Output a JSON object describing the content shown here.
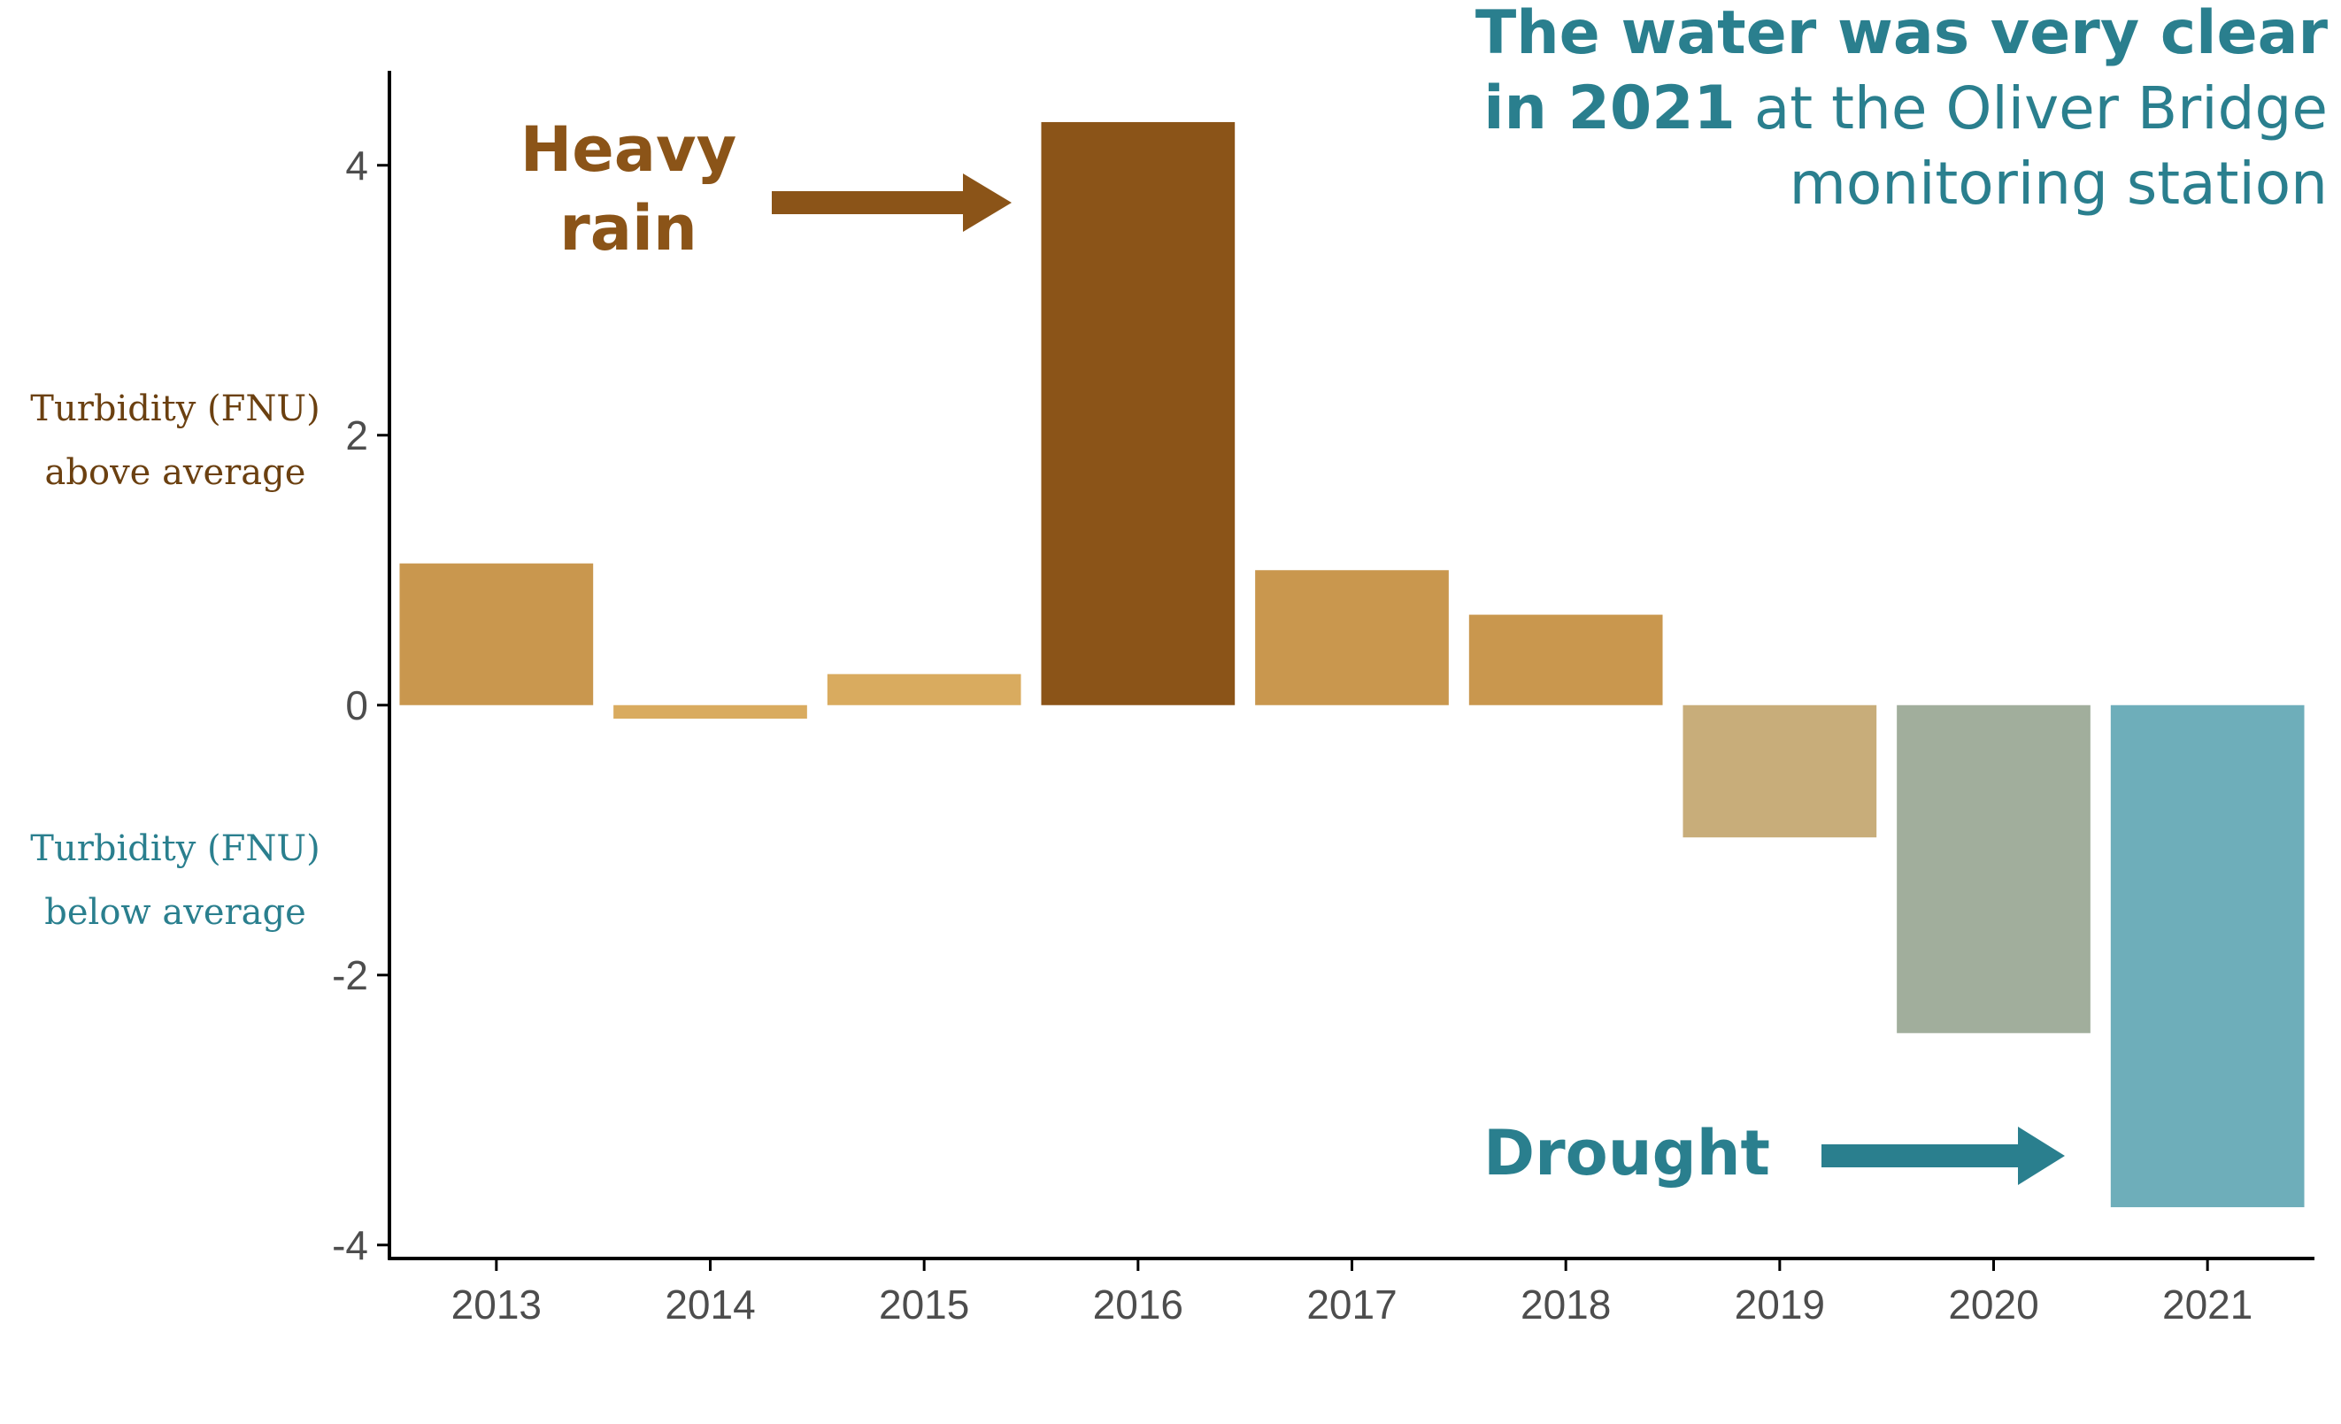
{
  "title": {
    "line1_bold": "The water was very clear",
    "line2_bold": "in 2021",
    "line2_rest": " at the Oliver Bridge",
    "line3": "monitoring station"
  },
  "annotations": {
    "heavy_rain_line1": "Heavy",
    "heavy_rain_line2": "rain",
    "drought": "Drought"
  },
  "side_labels": {
    "above_line1": "Turbidity (FNU)",
    "above_line2": "above average",
    "below_line1": "Turbidity (FNU)",
    "below_line2": "below average"
  },
  "colors": {
    "axis": "#000000",
    "rain_annotation": "#8b5418",
    "drought_annotation": "#2a7f8e",
    "title": "#2a7f8e",
    "above_label": "#6b4010",
    "below_label": "#2a7f8e"
  },
  "chart_data": {
    "type": "bar",
    "title": "The water was very clear in 2021 at the Oliver Bridge monitoring station",
    "xlabel": "",
    "ylabel": "",
    "categories": [
      "2013",
      "2014",
      "2015",
      "2016",
      "2017",
      "2018",
      "2019",
      "2020",
      "2021"
    ],
    "values": [
      1.05,
      -0.1,
      0.23,
      4.32,
      1.0,
      0.67,
      -0.98,
      -2.43,
      -3.72
    ],
    "bar_colors": [
      "#c9974e",
      "#d9ab5f",
      "#d9ab5f",
      "#8b5418",
      "#c9974e",
      "#c9974e",
      "#c8ad7a",
      "#a1ae9c",
      "#6eaeba"
    ],
    "ylim": [
      -4.1,
      4.7
    ],
    "yticks": [
      -4,
      -2,
      0,
      2,
      4
    ],
    "ytick_labels": [
      "-4",
      "-2",
      "0",
      "2",
      "4"
    ],
    "grid": false,
    "legend": "none"
  }
}
